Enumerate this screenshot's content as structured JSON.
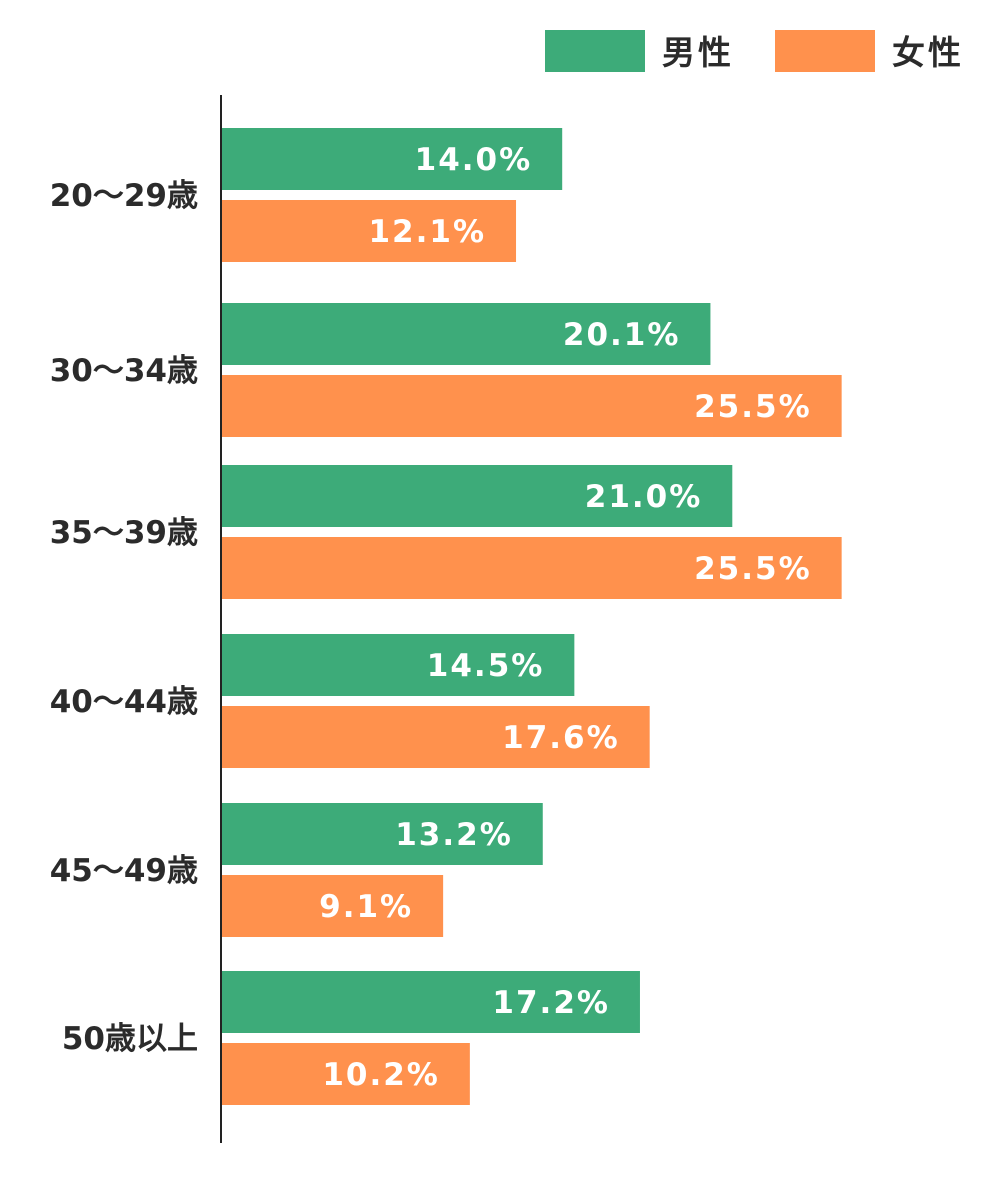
{
  "chart_data": {
    "type": "bar",
    "orientation": "horizontal",
    "title": "",
    "xlabel": "",
    "ylabel": "",
    "xlim": [
      0,
      25.5
    ],
    "grid": false,
    "legend_position": "top-right",
    "categories": [
      "20〜29歳",
      "30〜34歳",
      "35〜39歳",
      "40〜44歳",
      "45〜49歳",
      "50歳以上"
    ],
    "series": [
      {
        "name": "男性",
        "color": "#3dab79",
        "values": [
          14.0,
          20.1,
          21.0,
          14.5,
          13.2,
          17.2
        ],
        "labels": [
          "14.0%",
          "20.1%",
          "21.0%",
          "14.5%",
          "13.2%",
          "17.2%"
        ]
      },
      {
        "name": "女性",
        "color": "#ff914d",
        "values": [
          12.1,
          25.5,
          25.5,
          17.6,
          9.1,
          10.2
        ],
        "labels": [
          "12.1%",
          "25.5%",
          "25.5%",
          "17.6%",
          "9.1%",
          "10.2%"
        ]
      }
    ]
  }
}
